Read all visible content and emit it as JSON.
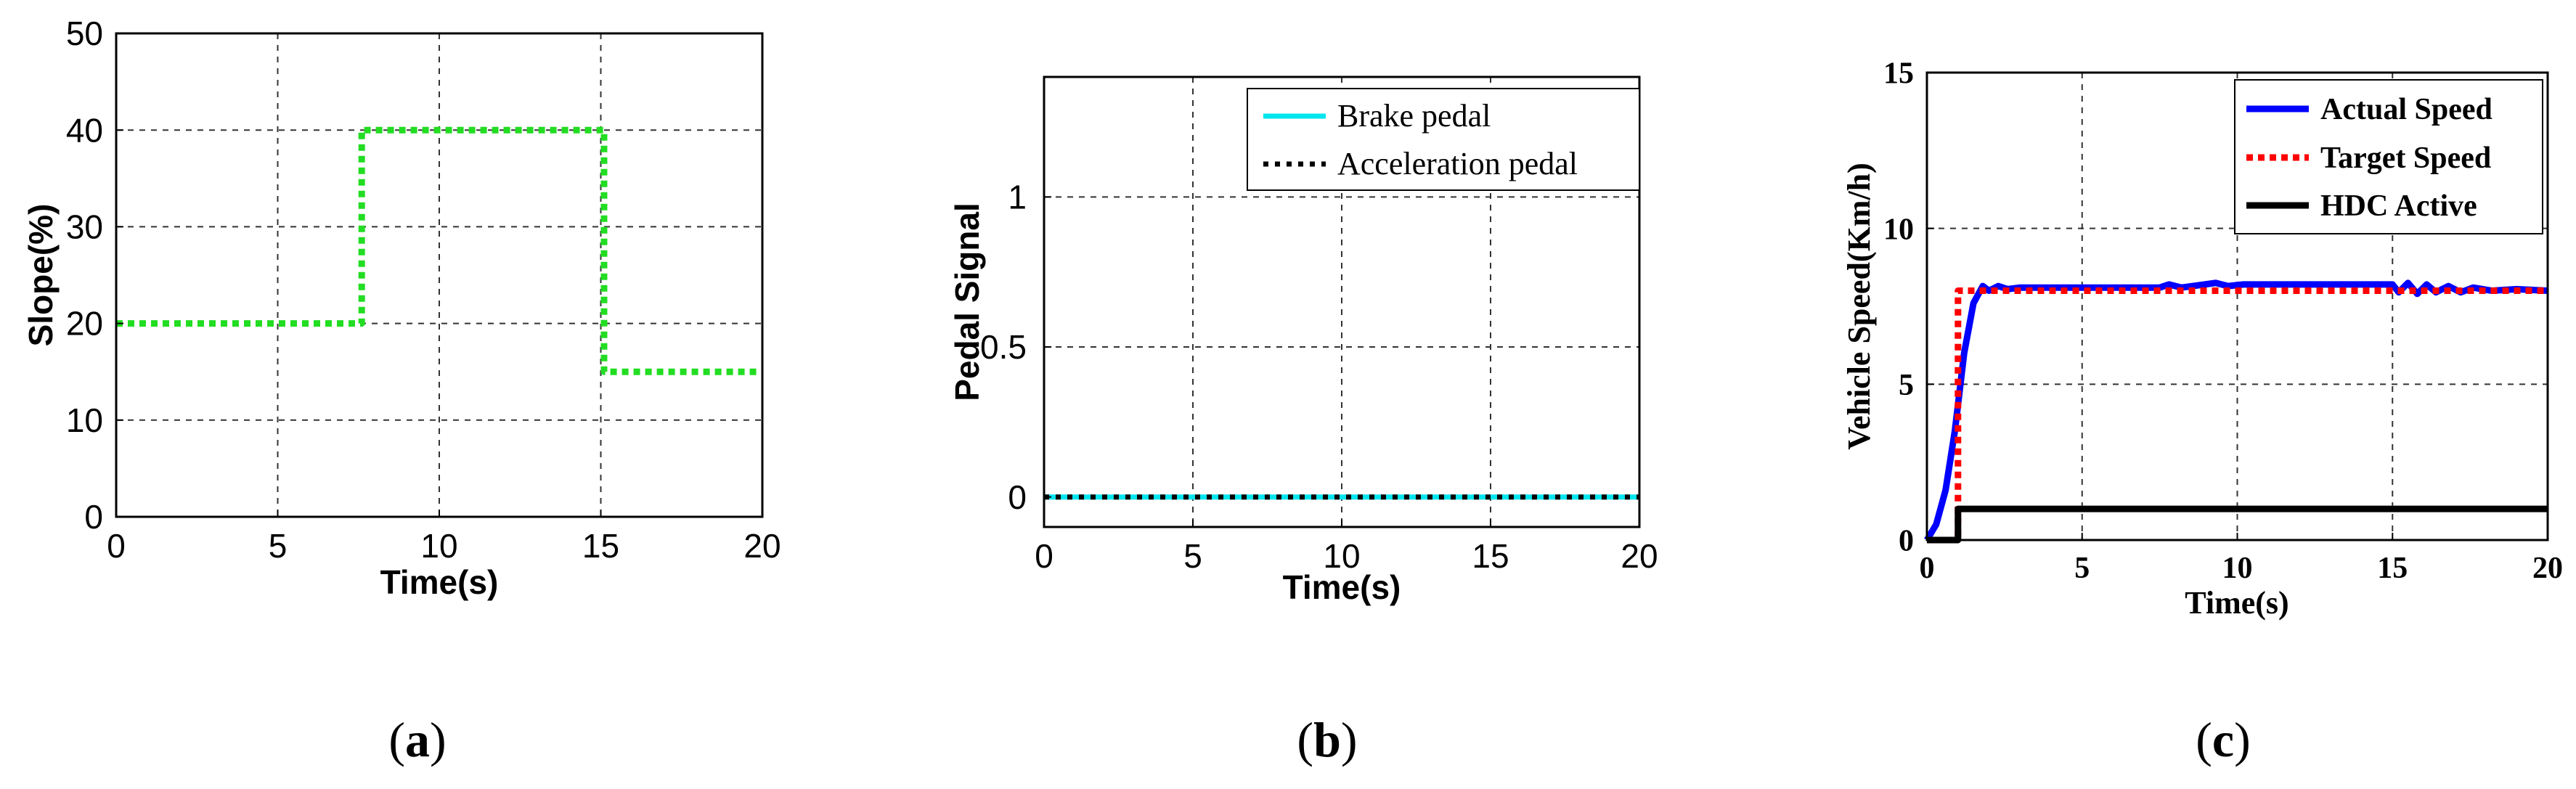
{
  "chart_data": [
    {
      "id": "a",
      "type": "line",
      "panel_label": "a",
      "xlabel": "Time(s)",
      "ylabel": "Slope(%)",
      "xlim": [
        0,
        20
      ],
      "ylim": [
        0,
        50
      ],
      "xticks": [
        0,
        5,
        10,
        15,
        20
      ],
      "yticks": [
        0,
        10,
        20,
        30,
        40,
        50
      ],
      "grid": true,
      "series": [
        {
          "color": "#22dd22",
          "style": "dotted",
          "points": [
            [
              0,
              20
            ],
            [
              7.6,
              20
            ],
            [
              7.6,
              40
            ],
            [
              15.1,
              40
            ],
            [
              15.1,
              15
            ],
            [
              20,
              15
            ]
          ]
        }
      ]
    },
    {
      "id": "b",
      "type": "line",
      "panel_label": "b",
      "xlabel": "Time(s)",
      "ylabel": "Pedal Signal",
      "xlim": [
        0,
        20
      ],
      "ylim": [
        -0.1,
        1.4
      ],
      "xticks": [
        0,
        5,
        10,
        15,
        20
      ],
      "yticks": [
        0,
        0.5,
        1
      ],
      "ytick_labels": [
        "0",
        "0.5",
        "1"
      ],
      "grid": true,
      "legend": "top-right",
      "series": [
        {
          "name": "Brake pedal",
          "color": "#00e5ee",
          "style": "solid",
          "points": [
            [
              0,
              0
            ],
            [
              20,
              0
            ]
          ]
        },
        {
          "name": "Acceleration pedal",
          "color": "#000000",
          "style": "dotted",
          "points": [
            [
              0,
              0
            ],
            [
              20,
              0
            ]
          ]
        }
      ]
    },
    {
      "id": "c",
      "type": "line",
      "panel_label": "c",
      "xlabel": "Time(s)",
      "ylabel": "Vehicle Speed(Km/h)",
      "xlim": [
        0,
        20
      ],
      "ylim": [
        0,
        15
      ],
      "xticks": [
        0,
        5,
        10,
        15,
        20
      ],
      "yticks": [
        0,
        5,
        10,
        15
      ],
      "grid": true,
      "legend": "top-right",
      "series": [
        {
          "name": "Actual Speed",
          "color": "#0000ff",
          "style": "solid",
          "points": [
            [
              0,
              0
            ],
            [
              0.3,
              0.5
            ],
            [
              0.6,
              1.6
            ],
            [
              0.9,
              3.5
            ],
            [
              1.2,
              6.0
            ],
            [
              1.5,
              7.6
            ],
            [
              1.8,
              8.15
            ],
            [
              2.0,
              8.0
            ],
            [
              2.3,
              8.15
            ],
            [
              2.6,
              8.05
            ],
            [
              3,
              8.1
            ],
            [
              5,
              8.1
            ],
            [
              7.5,
              8.1
            ],
            [
              7.8,
              8.2
            ],
            [
              8.2,
              8.1
            ],
            [
              9.3,
              8.25
            ],
            [
              9.7,
              8.15
            ],
            [
              10.2,
              8.2
            ],
            [
              12,
              8.2
            ],
            [
              15,
              8.2
            ],
            [
              15.2,
              7.95
            ],
            [
              15.5,
              8.25
            ],
            [
              15.8,
              7.9
            ],
            [
              16.1,
              8.2
            ],
            [
              16.4,
              7.95
            ],
            [
              16.8,
              8.15
            ],
            [
              17.2,
              7.95
            ],
            [
              17.6,
              8.1
            ],
            [
              18.2,
              8.0
            ],
            [
              19,
              8.05
            ],
            [
              20,
              8.0
            ]
          ]
        },
        {
          "name": "Target Speed",
          "color": "#ff0000",
          "style": "dotted",
          "points": [
            [
              0,
              0
            ],
            [
              1.0,
              0
            ],
            [
              1.0,
              8
            ],
            [
              20,
              8
            ]
          ]
        },
        {
          "name": "HDC Active",
          "color": "#000000",
          "style": "solid",
          "points": [
            [
              0,
              0
            ],
            [
              1.0,
              0
            ],
            [
              1.0,
              1
            ],
            [
              20,
              1
            ]
          ]
        }
      ]
    }
  ]
}
